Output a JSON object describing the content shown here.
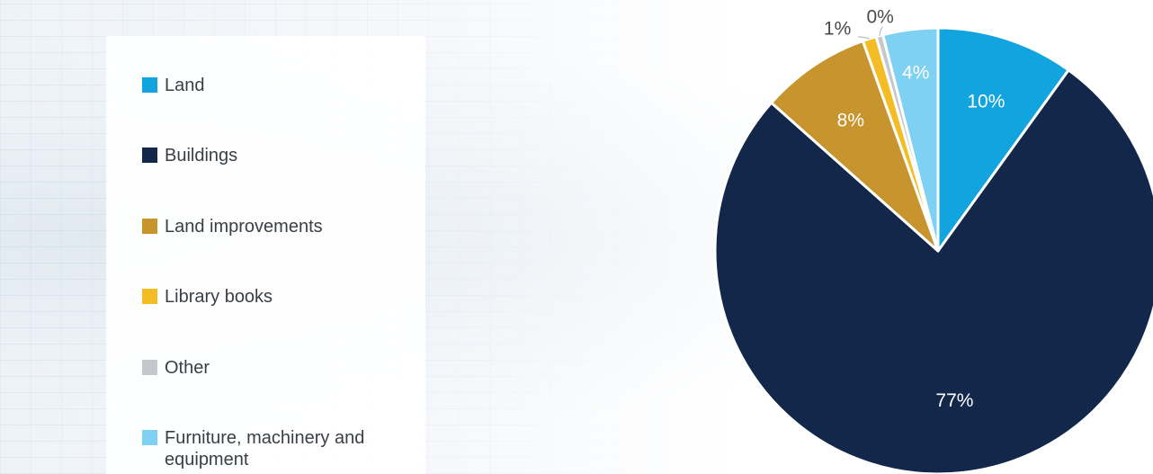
{
  "chart_data": {
    "type": "pie",
    "categories": [
      "Land",
      "Buildings",
      "Land improvements",
      "Library books",
      "Other",
      "Furniture, machinery and equipment"
    ],
    "values": [
      10,
      77,
      8,
      1,
      0,
      4
    ],
    "labels": [
      "10%",
      "77%",
      "8%",
      "1%",
      "0%",
      "4%"
    ],
    "colors": [
      "#12a4df",
      "#13274a",
      "#c8942d",
      "#f5bd25",
      "#c4c7cb",
      "#7fd1f3"
    ],
    "label_colors": [
      "#ffffff",
      "#ffffff",
      "#ffffff",
      "#4a4a4a",
      "#4a4a4a",
      "#ffffff"
    ],
    "legend_position": "left"
  },
  "legend": {
    "items": [
      {
        "label": "Land",
        "color": "#12a4df"
      },
      {
        "label": "Buildings",
        "color": "#13274a"
      },
      {
        "label": "Land improvements",
        "color": "#c8942d"
      },
      {
        "label": "Library books",
        "color": "#f5bd25"
      },
      {
        "label": "Other",
        "color": "#c4c7cb"
      },
      {
        "label": "Furniture, machinery and equipment",
        "color": "#7fd1f3"
      }
    ]
  }
}
